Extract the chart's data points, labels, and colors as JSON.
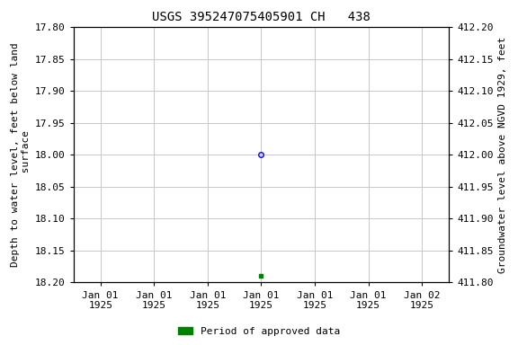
{
  "title": "USGS 395247075405901 CH   438",
  "ylabel_left": "Depth to water level, feet below land\n surface",
  "ylabel_right": "Groundwater level above NGVD 1929, feet",
  "ylim_left": [
    17.8,
    18.2
  ],
  "ylim_right": [
    411.8,
    412.2
  ],
  "yticks_left": [
    17.8,
    17.85,
    17.9,
    17.95,
    18.0,
    18.05,
    18.1,
    18.15,
    18.2
  ],
  "yticks_right": [
    411.8,
    411.85,
    411.9,
    411.95,
    412.0,
    412.05,
    412.1,
    412.15,
    412.2
  ],
  "point1_depth": 18.0,
  "point2_depth": 18.19,
  "x_tick_labels": [
    "Jan 01\n1925",
    "Jan 01\n1925",
    "Jan 01\n1925",
    "Jan 01\n1925",
    "Jan 01\n1925",
    "Jan 01\n1925",
    "Jan 02\n1925"
  ],
  "background_color": "#ffffff",
  "grid_color": "#c8c8c8",
  "legend_label": "Period of approved data",
  "legend_color": "#008000",
  "title_fontsize": 10,
  "axis_fontsize": 8,
  "tick_fontsize": 8
}
